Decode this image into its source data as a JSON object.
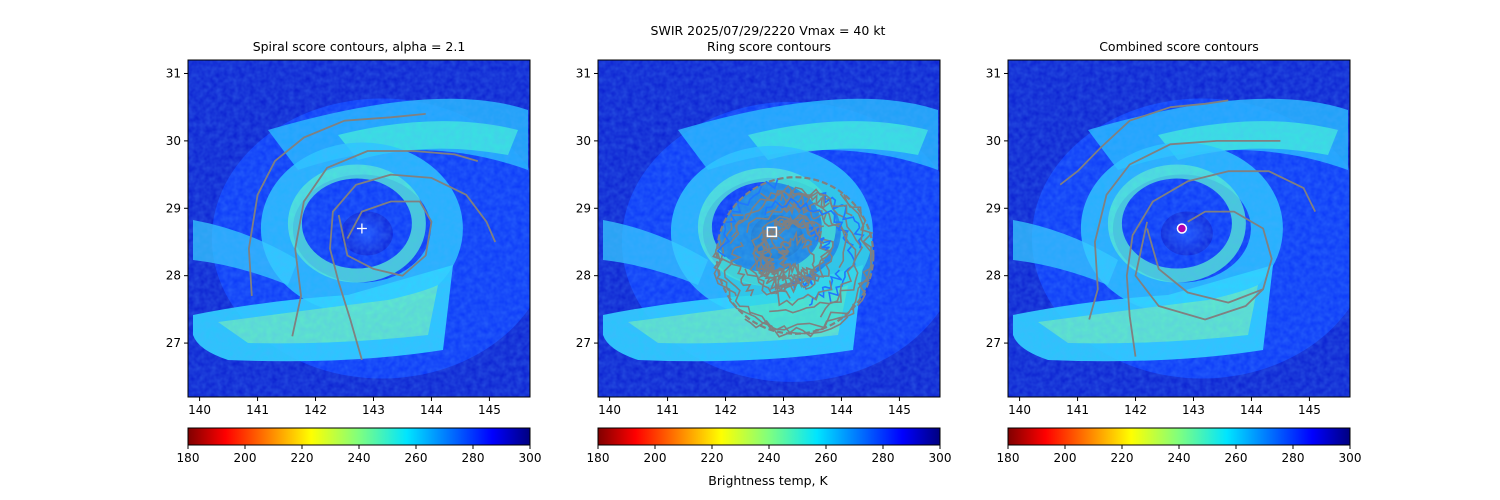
{
  "suptitle": {
    "line1": "SWIR  2025/07/29/2220    Vmax = 40 kt"
  },
  "colors": {
    "contour": "#808080",
    "ring_contour_inner": "#1f77ff",
    "marker_white": "#ffffff",
    "marker_combined": "#b000b0"
  },
  "colorbar": {
    "cmap": "jet_r",
    "range": [
      180,
      300
    ],
    "ticks": [
      "180",
      "200",
      "220",
      "240",
      "260",
      "280",
      "300"
    ],
    "label": "Brightness temp, K"
  },
  "chart_data": [
    {
      "type": "heatmap",
      "title": "Spiral score contours, alpha =  2.1",
      "x_ticks": [
        "140",
        "141",
        "142",
        "143",
        "144",
        "145"
      ],
      "y_ticks": [
        "27",
        "28",
        "29",
        "30",
        "31"
      ],
      "xlim": [
        139.8,
        145.7
      ],
      "ylim": [
        26.2,
        31.2
      ],
      "center": {
        "lon": 142.8,
        "lat": 28.7,
        "marker": "plus"
      },
      "contours": [
        [
          [
            140.9,
            27.7
          ],
          [
            140.85,
            28.4
          ],
          [
            141.0,
            29.2
          ],
          [
            141.3,
            29.7
          ],
          [
            141.8,
            30.05
          ],
          [
            142.5,
            30.3
          ],
          [
            143.3,
            30.35
          ],
          [
            143.9,
            30.4
          ]
        ],
        [
          [
            141.6,
            27.1
          ],
          [
            141.75,
            27.7
          ],
          [
            141.65,
            28.4
          ],
          [
            141.8,
            29.1
          ],
          [
            142.2,
            29.6
          ],
          [
            142.9,
            29.85
          ],
          [
            143.7,
            29.85
          ],
          [
            144.4,
            29.8
          ],
          [
            144.8,
            29.7
          ]
        ],
        [
          [
            142.8,
            26.75
          ],
          [
            142.6,
            27.35
          ],
          [
            142.4,
            27.9
          ],
          [
            142.25,
            28.4
          ],
          [
            142.3,
            28.95
          ],
          [
            142.7,
            29.35
          ],
          [
            143.3,
            29.5
          ],
          [
            144.0,
            29.45
          ],
          [
            144.6,
            29.2
          ],
          [
            144.95,
            28.8
          ],
          [
            145.1,
            28.5
          ]
        ],
        [
          [
            142.4,
            28.9
          ],
          [
            142.55,
            28.3
          ],
          [
            143.0,
            28.1
          ],
          [
            143.5,
            28.0
          ],
          [
            143.9,
            28.3
          ],
          [
            144.0,
            28.8
          ],
          [
            143.8,
            29.1
          ],
          [
            143.3,
            29.1
          ],
          [
            142.8,
            28.95
          ],
          [
            142.55,
            28.55
          ]
        ]
      ]
    },
    {
      "type": "heatmap",
      "title": "Ring score contours",
      "x_ticks": [
        "140",
        "141",
        "142",
        "143",
        "144",
        "145"
      ],
      "y_ticks": [
        "27",
        "28",
        "29",
        "30",
        "31"
      ],
      "xlim": [
        139.8,
        145.7
      ],
      "ylim": [
        26.2,
        31.2
      ],
      "center": {
        "lon": 142.8,
        "lat": 28.65,
        "marker": "square"
      },
      "ring": {
        "lon": 143.2,
        "lat": 28.3,
        "radius_deg": 1.35
      }
    },
    {
      "type": "heatmap",
      "title": "Combined score contours",
      "x_ticks": [
        "140",
        "141",
        "142",
        "143",
        "144",
        "145"
      ],
      "y_ticks": [
        "27",
        "28",
        "29",
        "30",
        "31"
      ],
      "xlim": [
        139.8,
        145.7
      ],
      "ylim": [
        26.2,
        31.2
      ],
      "center": {
        "lon": 142.8,
        "lat": 28.7,
        "marker": "circle"
      },
      "contours": [
        [
          [
            140.7,
            29.35
          ],
          [
            141.0,
            29.55
          ],
          [
            141.4,
            29.9
          ],
          [
            141.9,
            30.3
          ],
          [
            142.6,
            30.5
          ],
          [
            143.2,
            30.55
          ],
          [
            143.6,
            30.6
          ]
        ],
        [
          [
            141.2,
            27.35
          ],
          [
            141.35,
            27.8
          ],
          [
            141.3,
            28.5
          ],
          [
            141.5,
            29.2
          ],
          [
            141.9,
            29.65
          ],
          [
            142.6,
            29.95
          ],
          [
            143.4,
            30.0
          ],
          [
            144.0,
            30.0
          ],
          [
            144.5,
            30.0
          ]
        ],
        [
          [
            142.0,
            26.8
          ],
          [
            141.9,
            27.4
          ],
          [
            141.85,
            28.0
          ],
          [
            141.95,
            28.6
          ],
          [
            142.3,
            29.1
          ],
          [
            142.9,
            29.4
          ],
          [
            143.6,
            29.55
          ],
          [
            144.3,
            29.55
          ],
          [
            144.9,
            29.3
          ],
          [
            145.1,
            28.95
          ]
        ],
        [
          [
            142.2,
            28.7
          ],
          [
            142.4,
            28.1
          ],
          [
            142.9,
            27.75
          ],
          [
            143.6,
            27.6
          ],
          [
            144.2,
            27.8
          ],
          [
            144.35,
            28.25
          ],
          [
            144.2,
            28.7
          ],
          [
            143.7,
            28.95
          ],
          [
            143.2,
            28.95
          ],
          [
            142.9,
            28.8
          ]
        ],
        [
          [
            142.2,
            28.8
          ],
          [
            142.0,
            28.0
          ],
          [
            142.4,
            27.55
          ],
          [
            143.2,
            27.35
          ],
          [
            143.9,
            27.55
          ],
          [
            144.2,
            27.8
          ]
        ]
      ]
    }
  ]
}
